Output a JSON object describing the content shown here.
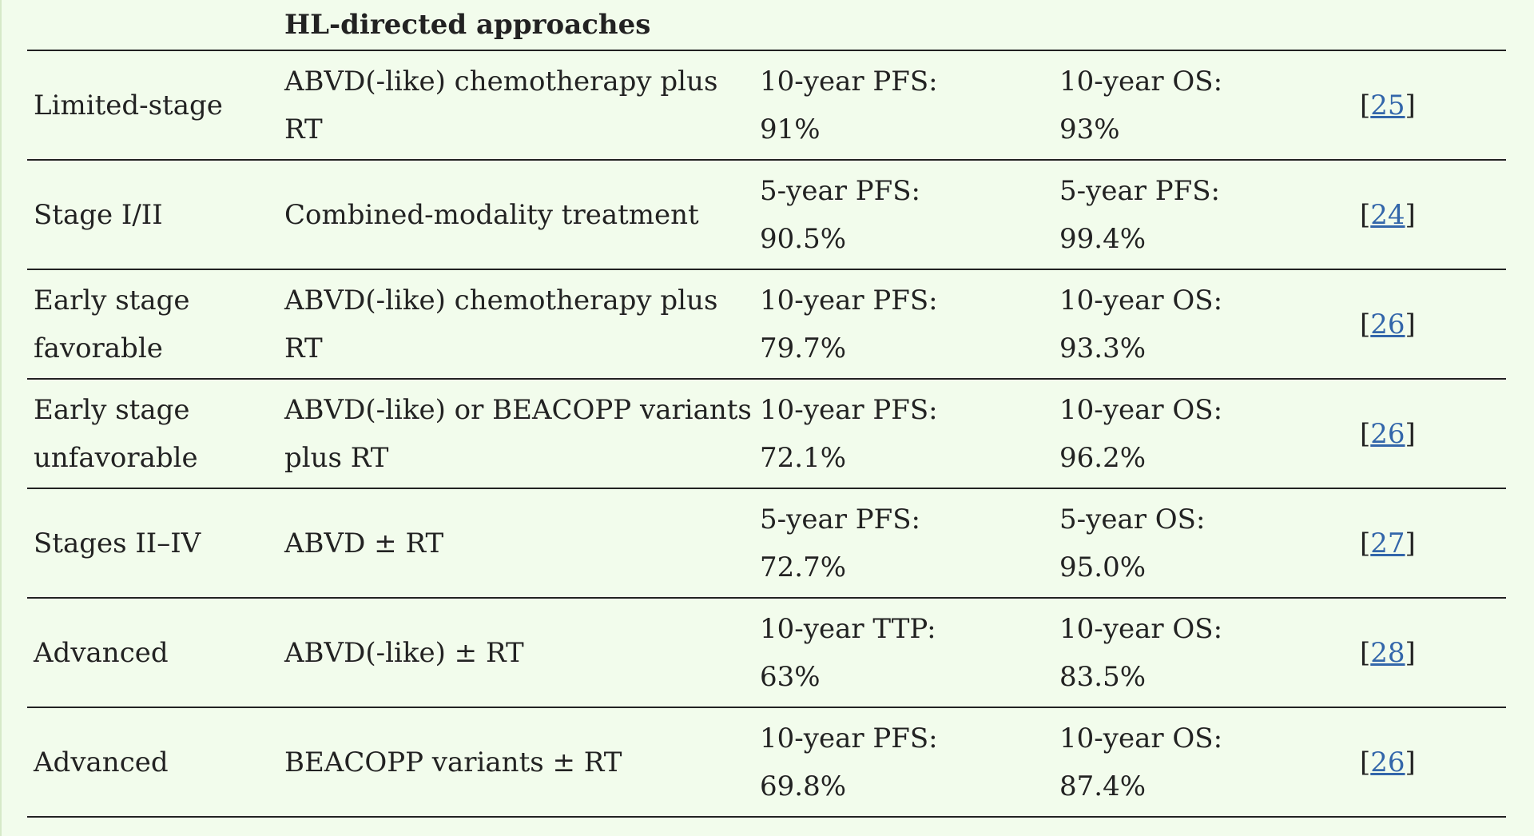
{
  "table": {
    "header": {
      "col1": "",
      "col2": "HL-directed approaches",
      "col3": "",
      "col4": "",
      "col5": ""
    },
    "rows": [
      {
        "stage": "Limited-stage",
        "approach": "ABVD(-like) chemotherapy plus RT",
        "metric1_label": "10-year PFS:",
        "metric1_value": "91%",
        "metric2_label": "10-year OS:",
        "metric2_value": "93%",
        "ref": "25"
      },
      {
        "stage": "Stage I/II",
        "approach": "Combined-modality treatment",
        "metric1_label": "5-year PFS:",
        "metric1_value": "90.5%",
        "metric2_label": "5-year PFS:",
        "metric2_value": "99.4%",
        "ref": "24"
      },
      {
        "stage": "Early stage favorable",
        "approach": "ABVD(-like) chemotherapy plus RT",
        "metric1_label": "10-year PFS:",
        "metric1_value": "79.7%",
        "metric2_label": "10-year OS:",
        "metric2_value": "93.3%",
        "ref": "26"
      },
      {
        "stage": "Early stage unfavorable",
        "approach": "ABVD(-like) or BEACOPP variants plus RT",
        "metric1_label": "10-year PFS:",
        "metric1_value": "72.1%",
        "metric2_label": "10-year OS:",
        "metric2_value": "96.2%",
        "ref": "26"
      },
      {
        "stage": "Stages II–IV",
        "approach": "ABVD ± RT",
        "metric1_label": "5-year PFS:",
        "metric1_value": "72.7%",
        "metric2_label": "5-year OS:",
        "metric2_value": "95.0%",
        "ref": "27"
      },
      {
        "stage": "Advanced",
        "approach": "ABVD(-like) ± RT",
        "metric1_label": "10-year TTP:",
        "metric1_value": "63%",
        "metric2_label": "10-year OS:",
        "metric2_value": "83.5%",
        "ref": "28"
      },
      {
        "stage": "Advanced",
        "approach": "BEACOPP variants ± RT",
        "metric1_label": "10-year PFS:",
        "metric1_value": "69.8%",
        "metric2_label": "10-year OS:",
        "metric2_value": "87.4%",
        "ref": "26"
      }
    ]
  }
}
